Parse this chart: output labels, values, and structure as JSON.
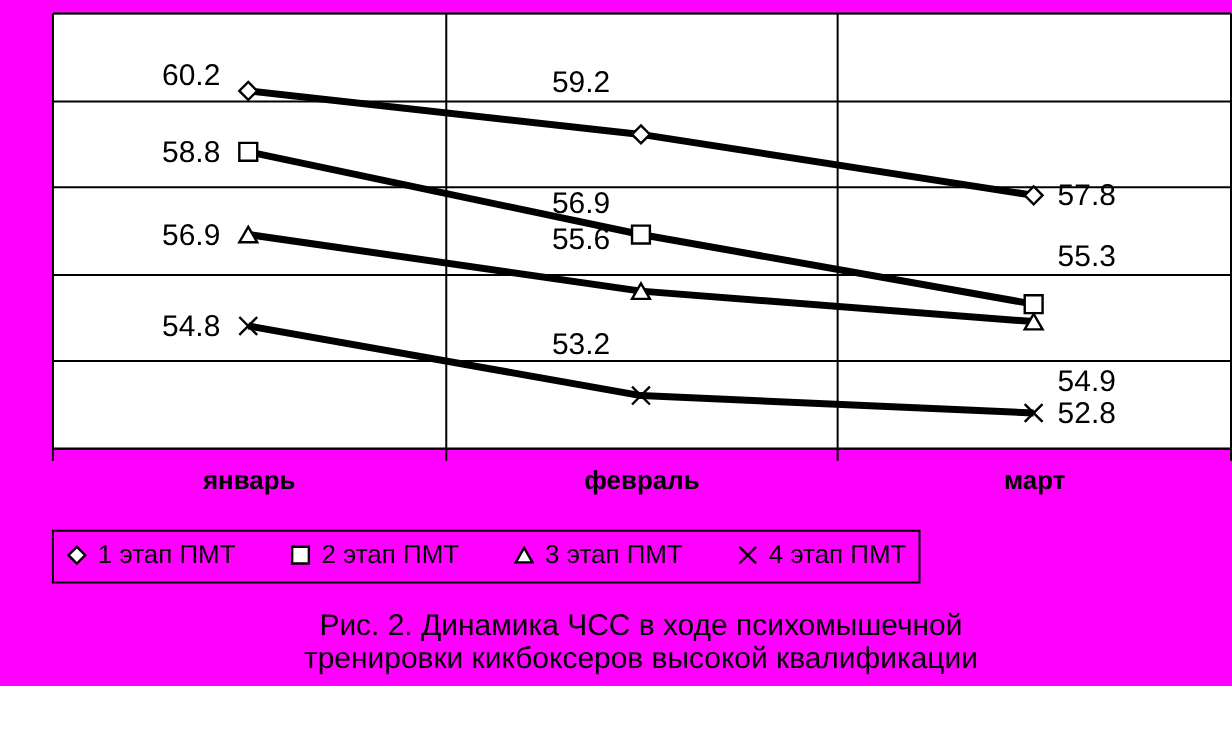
{
  "chart_data": {
    "type": "line",
    "categories": [
      "январь",
      "февраль",
      "март"
    ],
    "series": [
      {
        "name": "1 этап ПМТ",
        "color": "#000000",
        "marker": "diamond",
        "values": [
          60.2,
          59.2,
          57.8
        ]
      },
      {
        "name": "2 этап ПМТ",
        "color": "#000000",
        "marker": "square",
        "values": [
          58.8,
          56.9,
          55.3
        ]
      },
      {
        "name": "3 этап ПМТ",
        "color": "#000000",
        "marker": "triangle",
        "values": [
          56.9,
          55.6,
          54.9
        ]
      },
      {
        "name": "4 этап ПМТ",
        "color": "#000000",
        "marker": "cross",
        "values": [
          54.8,
          53.2,
          52.8
        ]
      }
    ],
    "ylim": [
      52,
      62
    ],
    "yticks": [
      {
        "value": 52,
        "label": null
      },
      {
        "value": 54,
        "label": null
      },
      {
        "value": 56,
        "label": null
      },
      {
        "value": 58,
        "label": null
      },
      {
        "value": 60,
        "label": null
      },
      {
        "value": 62,
        "label": null
      }
    ],
    "tick_labels": "x",
    "grid": true,
    "legend": "bottom",
    "data_labels": true,
    "line_style": "solid",
    "annotations": [
      "Рис. 2. Динамика ЧСС в ходе психомышечной\nтренировки кикбоксеров высокой квалификации"
    ]
  }
}
